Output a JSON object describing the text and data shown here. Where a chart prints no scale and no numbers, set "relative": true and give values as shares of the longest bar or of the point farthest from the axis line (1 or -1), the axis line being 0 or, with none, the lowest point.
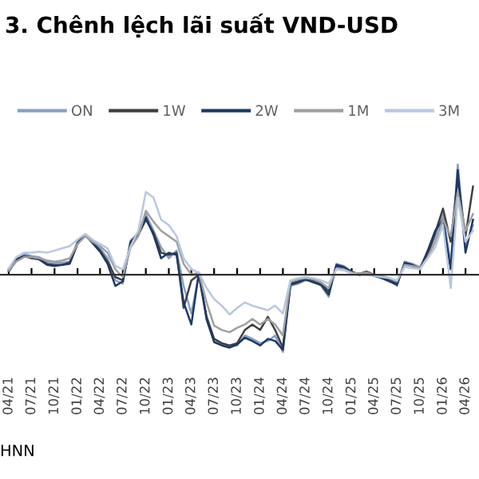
{
  "chart_data": {
    "type": "line",
    "title": "3. Chênh lệch lãi suất VND-USD",
    "relative": true,
    "legend": "top",
    "grid": false,
    "x": [
      "2021-04",
      "2021-05",
      "2021-06",
      "2021-07",
      "2021-08",
      "2021-09",
      "2021-10",
      "2021-11",
      "2021-12",
      "2022-01",
      "2022-02",
      "2022-03",
      "2022-04",
      "2022-05",
      "2022-06",
      "2022-07",
      "2022-08",
      "2022-09",
      "2022-10",
      "2022-11",
      "2022-12",
      "2023-01",
      "2023-02",
      "2023-03",
      "2023-04",
      "2023-05",
      "2023-06",
      "2023-07",
      "2023-08",
      "2023-09",
      "2023-10",
      "2023-11",
      "2023-12",
      "2024-01",
      "2024-02",
      "2024-03",
      "2024-04",
      "2024-05",
      "2024-06",
      "2024-07",
      "2024-08",
      "2024-09",
      "2024-10",
      "2024-11",
      "2024-12",
      "2025-01",
      "2025-02",
      "2025-03",
      "2025-04",
      "2025-05",
      "2025-06",
      "2025-07",
      "2025-08",
      "2025-09",
      "2025-10",
      "2025-11",
      "2025-12",
      "2026-01",
      "2026-02",
      "2026-03",
      "2026-04",
      "2026-05"
    ],
    "xlim": [
      "2021-02-25",
      "2026-05-25"
    ],
    "xticks": [
      {
        "value": "2021-04",
        "label": "04/21"
      },
      {
        "value": "2021-07",
        "label": "07/21"
      },
      {
        "value": "2021-10",
        "label": "10/21"
      },
      {
        "value": "2022-01",
        "label": "01/22"
      },
      {
        "value": "2022-04",
        "label": "04/22"
      },
      {
        "value": "2022-07",
        "label": "07/22"
      },
      {
        "value": "2022-10",
        "label": "10/22"
      },
      {
        "value": "2023-01",
        "label": "01/23"
      },
      {
        "value": "2023-04",
        "label": "04/23"
      },
      {
        "value": "2023-07",
        "label": "07/23"
      },
      {
        "value": "2023-10",
        "label": "10/23"
      },
      {
        "value": "2024-01",
        "label": "01/24"
      },
      {
        "value": "2024-04",
        "label": "04/24"
      },
      {
        "value": "2024-07",
        "label": "07/24"
      },
      {
        "value": "2024-10",
        "label": "10/24"
      },
      {
        "value": "2025-01",
        "label": "01/25"
      },
      {
        "value": "2025-04",
        "label": "04/25"
      },
      {
        "value": "2025-07",
        "label": "07/25"
      },
      {
        "value": "2025-10",
        "label": "10/25"
      },
      {
        "value": "2026-01",
        "label": "01/26"
      },
      {
        "value": "2026-04",
        "label": "04/26"
      }
    ],
    "series": [
      {
        "name": "ON",
        "color": "#8aa0c0",
        "values": [
          0.05,
          0.15,
          0.19,
          0.17,
          0.16,
          0.12,
          0.11,
          0.11,
          0.12,
          0.3,
          0.37,
          0.31,
          0.24,
          0.15,
          -0.05,
          -0.08,
          0.31,
          0.38,
          0.55,
          0.4,
          0.25,
          0.15,
          0.22,
          -0.1,
          -0.35,
          0.0,
          -0.41,
          -0.6,
          -0.63,
          -0.65,
          -0.64,
          -0.55,
          -0.58,
          -0.62,
          -0.6,
          -0.55,
          -0.7,
          -0.1,
          -0.08,
          -0.05,
          -0.06,
          -0.1,
          -0.2,
          0.1,
          0.08,
          0.02,
          0.0,
          0.02,
          0.0,
          -0.02,
          -0.05,
          -0.1,
          0.12,
          0.1,
          0.07,
          0.2,
          0.35,
          0.55,
          0.1,
          1.0,
          0.25,
          0.45
        ]
      },
      {
        "name": "1W",
        "color": "#404040",
        "values": [
          0.04,
          0.14,
          0.17,
          0.15,
          0.14,
          0.1,
          0.09,
          0.09,
          0.1,
          0.28,
          0.36,
          0.3,
          0.22,
          0.12,
          -0.02,
          -0.05,
          0.28,
          0.36,
          0.5,
          0.38,
          0.2,
          0.18,
          0.2,
          -0.3,
          -0.05,
          0.0,
          -0.38,
          -0.58,
          -0.62,
          -0.64,
          -0.62,
          -0.5,
          -0.45,
          -0.5,
          -0.38,
          -0.5,
          -0.66,
          -0.08,
          -0.06,
          -0.04,
          -0.05,
          -0.08,
          -0.15,
          0.08,
          0.06,
          0.02,
          0.01,
          0.03,
          0.0,
          -0.03,
          -0.04,
          -0.08,
          0.1,
          0.08,
          0.06,
          0.18,
          0.38,
          0.6,
          0.3,
          0.87,
          0.35,
          0.8
        ]
      },
      {
        "name": "2W",
        "color": "#1f3864",
        "values": [
          0.03,
          0.13,
          0.17,
          0.16,
          0.14,
          0.09,
          0.08,
          0.09,
          0.11,
          0.29,
          0.36,
          0.29,
          0.21,
          0.1,
          -0.1,
          -0.06,
          0.3,
          0.37,
          0.52,
          0.36,
          0.15,
          0.2,
          0.18,
          -0.25,
          -0.45,
          0.02,
          -0.4,
          -0.61,
          -0.64,
          -0.66,
          -0.63,
          -0.57,
          -0.6,
          -0.64,
          -0.58,
          -0.6,
          -0.68,
          -0.09,
          -0.07,
          -0.04,
          -0.07,
          -0.09,
          -0.18,
          0.09,
          0.07,
          0.03,
          0.0,
          0.01,
          -0.01,
          -0.03,
          -0.06,
          -0.09,
          0.11,
          0.09,
          0.05,
          0.22,
          0.4,
          0.5,
          0.05,
          0.95,
          0.2,
          0.5
        ]
      },
      {
        "name": "1M",
        "color": "#a0a0a0",
        "values": [
          0.04,
          0.12,
          0.16,
          0.16,
          0.15,
          0.13,
          0.12,
          0.13,
          0.15,
          0.28,
          0.35,
          0.3,
          0.26,
          0.2,
          0.05,
          -0.02,
          0.25,
          0.35,
          0.58,
          0.48,
          0.4,
          0.35,
          0.3,
          0.1,
          0.0,
          0.02,
          -0.25,
          -0.46,
          -0.5,
          -0.52,
          -0.48,
          -0.45,
          -0.4,
          -0.45,
          -0.4,
          -0.45,
          -0.55,
          -0.06,
          -0.04,
          -0.03,
          -0.04,
          -0.07,
          -0.12,
          0.06,
          0.05,
          0.02,
          0.01,
          0.02,
          0.0,
          -0.01,
          -0.03,
          -0.06,
          0.09,
          0.08,
          0.06,
          0.16,
          0.3,
          0.5,
          0.35,
          0.75,
          0.4,
          0.55
        ]
      },
      {
        "name": "3M",
        "color": "#b8c8e0",
        "values": [
          0.06,
          0.16,
          0.2,
          0.2,
          0.21,
          0.2,
          0.22,
          0.24,
          0.26,
          0.32,
          0.37,
          0.32,
          0.28,
          0.24,
          0.08,
          0.05,
          0.26,
          0.4,
          0.75,
          0.7,
          0.5,
          0.45,
          0.35,
          0.15,
          0.05,
          0.02,
          -0.12,
          -0.22,
          -0.28,
          -0.36,
          -0.3,
          -0.25,
          -0.28,
          -0.3,
          -0.32,
          -0.28,
          -0.35,
          -0.05,
          -0.03,
          -0.02,
          -0.03,
          -0.05,
          -0.08,
          0.05,
          0.04,
          0.01,
          0.0,
          0.0,
          -0.01,
          -0.02,
          -0.03,
          -0.05,
          0.07,
          0.06,
          0.05,
          0.15,
          0.25,
          0.45,
          -0.12,
          0.7,
          0.3,
          0.4
        ]
      }
    ],
    "annotations": [
      "HNN"
    ]
  }
}
